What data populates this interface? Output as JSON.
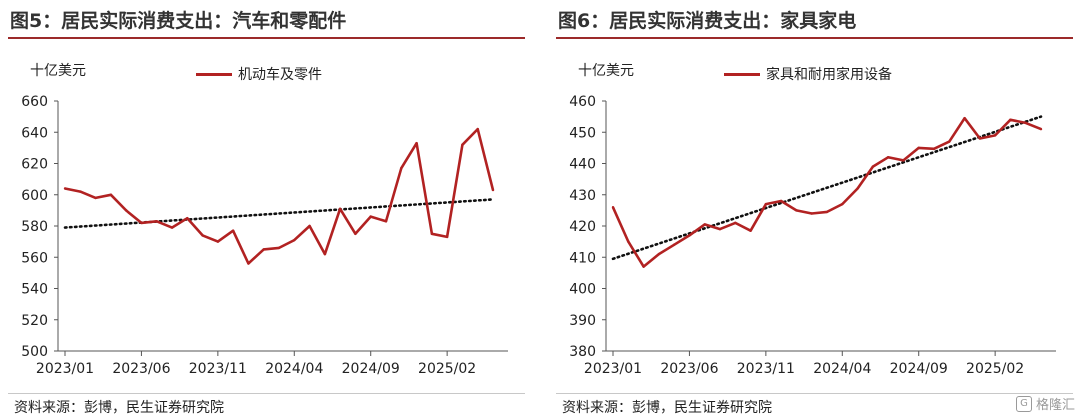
{
  "chart_data": [
    {
      "type": "line",
      "title": "图5：居民实际消费支出：汽车和零配件",
      "ylabel": "十亿美元",
      "xlabel": "",
      "ylim": [
        500,
        660
      ],
      "yticks": [
        500,
        520,
        540,
        560,
        580,
        600,
        620,
        640,
        660
      ],
      "x_tick_labels": [
        "2023/01",
        "2023/06",
        "2023/11",
        "2024/04",
        "2024/09",
        "2025/02"
      ],
      "x_tick_index": [
        0,
        5,
        10,
        15,
        20,
        25
      ],
      "legend_position": "top-center",
      "grid": false,
      "series": [
        {
          "name": "机动车及零件",
          "color": "#b22222",
          "x": [
            "2023/01",
            "2023/02",
            "2023/03",
            "2023/04",
            "2023/05",
            "2023/06",
            "2023/07",
            "2023/08",
            "2023/09",
            "2023/10",
            "2023/11",
            "2023/12",
            "2024/01",
            "2024/02",
            "2024/03",
            "2024/04",
            "2024/05",
            "2024/06",
            "2024/07",
            "2024/08",
            "2024/09",
            "2024/10",
            "2024/11",
            "2024/12",
            "2025/01",
            "2025/02",
            "2025/03",
            "2025/04",
            "2025/05"
          ],
          "values": [
            604,
            602,
            598,
            600,
            590,
            582,
            583,
            579,
            585,
            574,
            570,
            577,
            556,
            565,
            566,
            571,
            580,
            562,
            591,
            575,
            586,
            583,
            617,
            633,
            575,
            573,
            632,
            642,
            603
          ]
        }
      ],
      "trendline": {
        "style": "dotted",
        "color": "#111111",
        "start": 579,
        "end": 597
      }
    },
    {
      "type": "line",
      "title": "图6：居民实际消费支出：家具家电",
      "ylabel": "十亿美元",
      "xlabel": "",
      "ylim": [
        380,
        460
      ],
      "yticks": [
        380,
        390,
        400,
        410,
        420,
        430,
        440,
        450,
        460
      ],
      "x_tick_labels": [
        "2023/01",
        "2023/06",
        "2023/11",
        "2024/04",
        "2024/09",
        "2025/02"
      ],
      "x_tick_index": [
        0,
        5,
        10,
        15,
        20,
        25
      ],
      "legend_position": "top-center",
      "grid": false,
      "series": [
        {
          "name": "家具和耐用家用设备",
          "color": "#b22222",
          "x": [
            "2023/01",
            "2023/02",
            "2023/03",
            "2023/04",
            "2023/05",
            "2023/06",
            "2023/07",
            "2023/08",
            "2023/09",
            "2023/10",
            "2023/11",
            "2023/12",
            "2024/01",
            "2024/02",
            "2024/03",
            "2024/04",
            "2024/05",
            "2024/06",
            "2024/07",
            "2024/08",
            "2024/09",
            "2024/10",
            "2024/11",
            "2024/12",
            "2025/01",
            "2025/02",
            "2025/03",
            "2025/04",
            "2025/05"
          ],
          "values": [
            426,
            415,
            407,
            411,
            414,
            417,
            420.5,
            419,
            421,
            418.5,
            427,
            428,
            425,
            424,
            424.5,
            427,
            432,
            439,
            442,
            441,
            445,
            444.7,
            447,
            454.5,
            448,
            449,
            454,
            453,
            451
          ]
        }
      ],
      "trendline": {
        "style": "dotted",
        "color": "#111111",
        "start": 409.5,
        "end": 455
      }
    }
  ],
  "panels": [
    {
      "title": "图5：居民实际消费支出：汽车和零配件",
      "unit": "十亿美元",
      "legend": "机动车及零件",
      "source": "资料来源：彭博，民生证券研究院"
    },
    {
      "title": "图6：居民实际消费支出：家具家电",
      "unit": "十亿美元",
      "legend": "家具和耐用家用设备",
      "source": "资料来源：彭博，民生证券研究院",
      "watermark": "格隆汇"
    }
  ]
}
